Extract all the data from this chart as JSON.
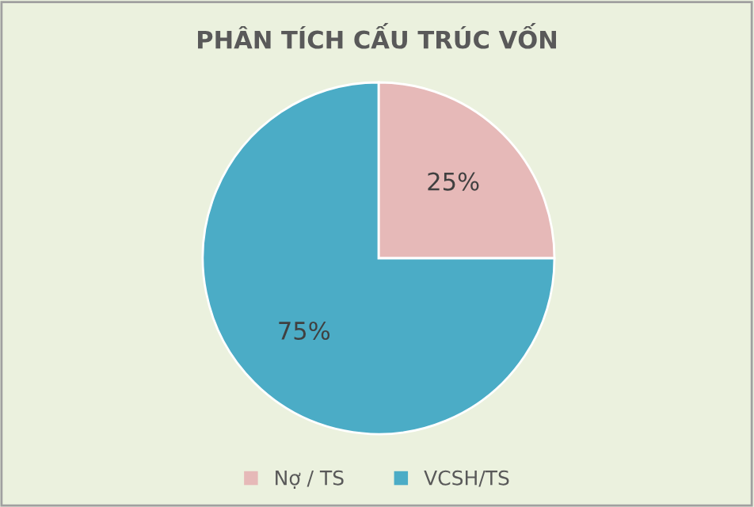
{
  "chart_data": {
    "type": "pie",
    "title": "PHÂN TÍCH CẤU TRÚC VỐN",
    "categories": [
      "Nợ / TS",
      "VCSH/TS"
    ],
    "values": [
      25,
      75
    ],
    "colors": [
      "#e6b9b8",
      "#4bacc6"
    ],
    "value_labels": [
      "25%",
      "75%"
    ],
    "legend": "bottom"
  }
}
